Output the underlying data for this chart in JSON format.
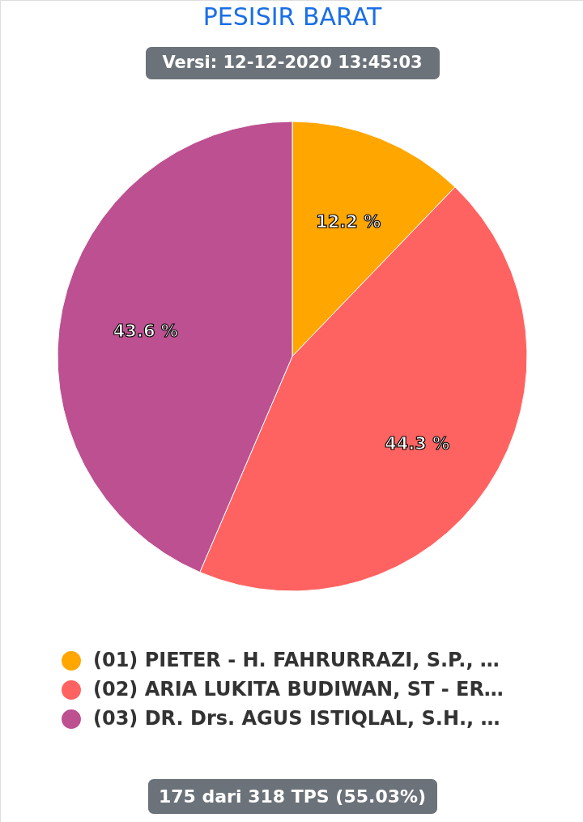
{
  "chart_data": {
    "type": "pie",
    "title": "PESISIR BARAT",
    "subtitle": "Versi: 12-12-2020 13:45:03",
    "categories": [
      "(01) PIETER - H. FAHRURRAZI, S.P., …",
      "(02) ARIA LUKITA BUDIWAN, ST - ER…",
      "(03) DR. Drs. AGUS ISTIQLAL, S.H., …"
    ],
    "values": [
      12.2,
      44.3,
      43.6
    ],
    "colors": [
      "#ffa600",
      "#ff6361",
      "#bc5090"
    ],
    "value_labels": [
      "12.2 %",
      "44.3 %",
      "43.6 %"
    ],
    "legend": "bottom",
    "annotations": [
      "175 dari 318 TPS (55.03%)"
    ]
  }
}
